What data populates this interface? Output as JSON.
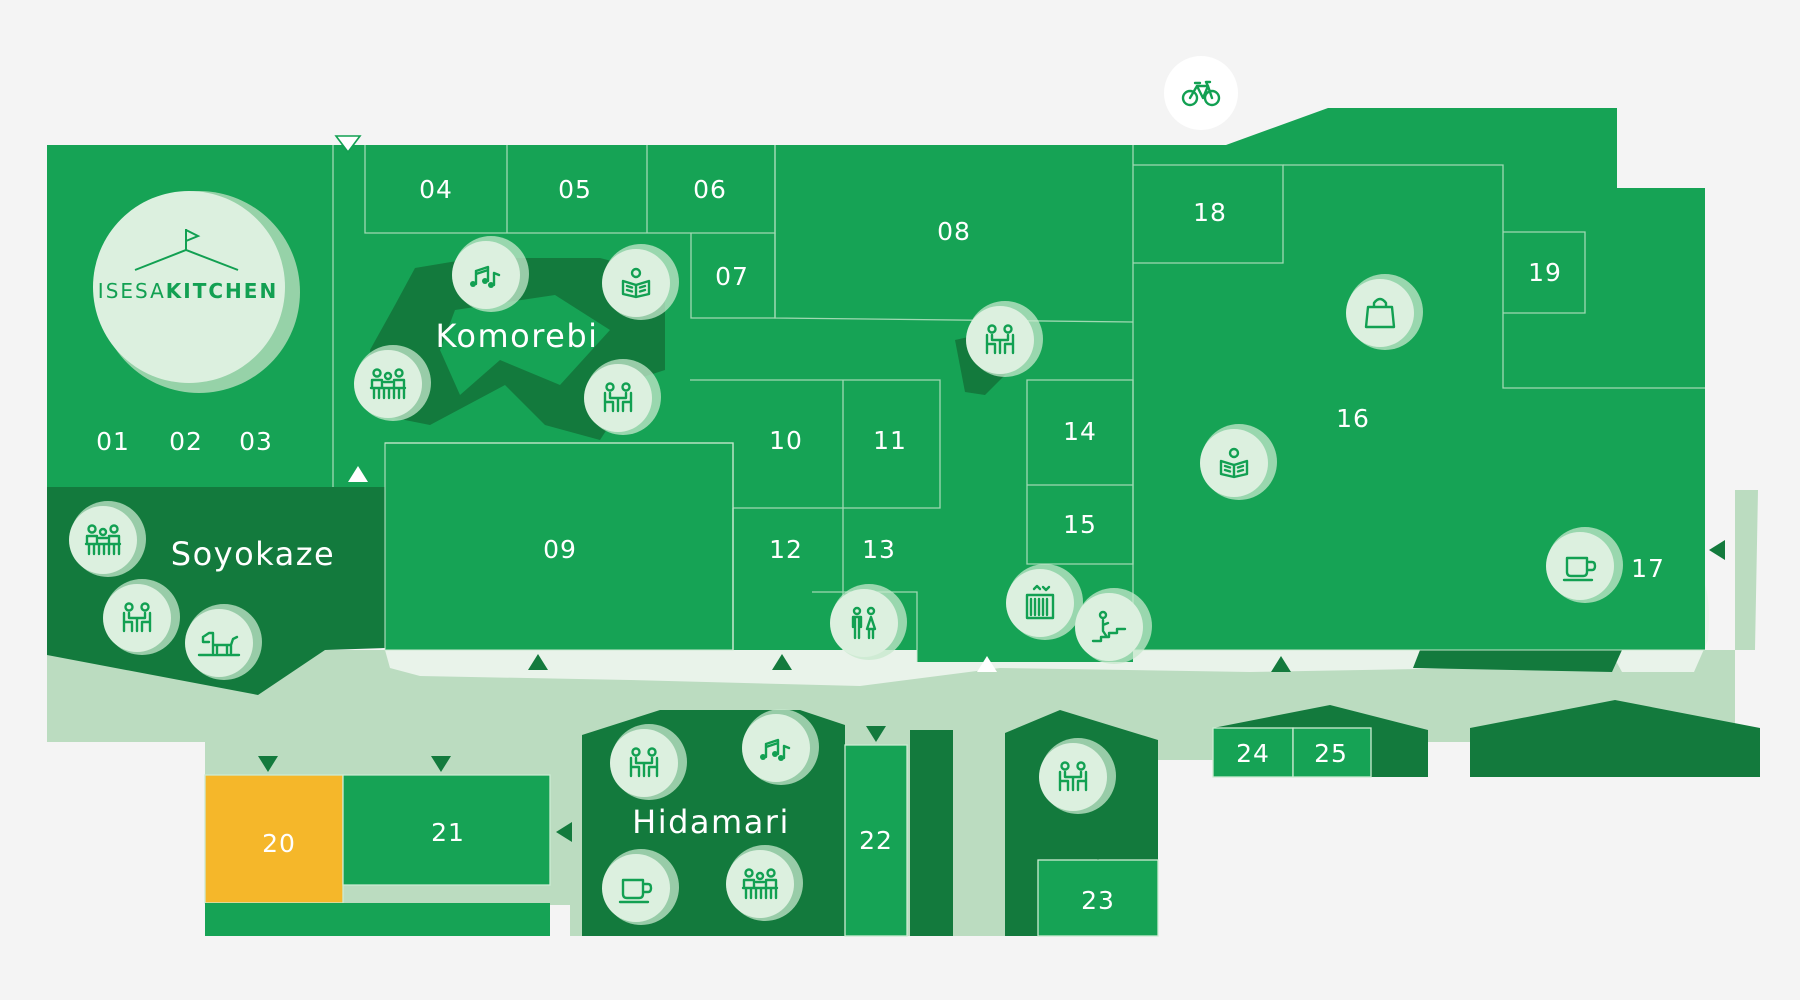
{
  "map": {
    "logo": {
      "text_light": "ISESA",
      "text_bold": "KITCHEN"
    },
    "areas": [
      "Komorebi",
      "Soyokaze",
      "Hidamari"
    ],
    "units": [
      "01",
      "02",
      "03",
      "04",
      "05",
      "06",
      "07",
      "08",
      "09",
      "10",
      "11",
      "12",
      "13",
      "14",
      "15",
      "16",
      "17",
      "18",
      "19",
      "20",
      "21",
      "22",
      "23",
      "24",
      "25"
    ],
    "highlighted_unit": "20",
    "colors": {
      "background": "#f4f4f4",
      "unit": "#16a355",
      "lounge": "#137a3d",
      "walkway": "#bbdcc0",
      "walkway_inner": "#e9f3ea",
      "highlight": "#f5b72a",
      "icon_badge": "#dcf0df",
      "icon_stroke": "#12a052"
    },
    "icons": [
      "bicycle-icon",
      "music-icon",
      "reading-icon",
      "people-table-icon",
      "dining-icon",
      "family-icon",
      "dog-icon",
      "shopping-bag-icon",
      "coffee-icon",
      "restroom-icon",
      "elevator-icon",
      "stairs-icon"
    ],
    "entrance_markers": "triangle"
  }
}
